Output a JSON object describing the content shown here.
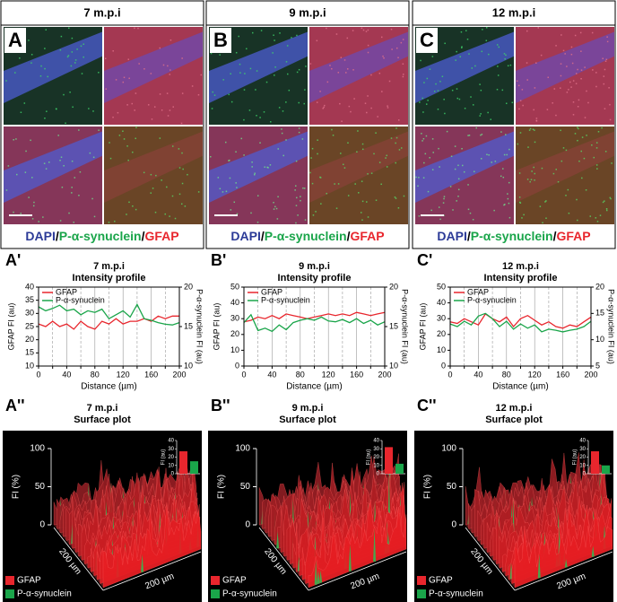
{
  "figure": {
    "columns": [
      {
        "label": "A",
        "header": "7 m.p.i",
        "stain": [
          "DAPI",
          "/",
          "P-α-synuclein",
          "/",
          "GFAP"
        ],
        "stain_colors": [
          "#2b3a97",
          "#000000",
          "#1aa54a",
          "#000000",
          "#e8262d"
        ]
      },
      {
        "label": "B",
        "header": "9 m.p.i",
        "stain": [
          "DAPI",
          "/",
          "P-α-synuclein",
          "/",
          "GFAP"
        ],
        "stain_colors": [
          "#2b3a97",
          "#000000",
          "#1aa54a",
          "#000000",
          "#e8262d"
        ]
      },
      {
        "label": "C",
        "header": "12 m.p.i",
        "stain": [
          "DAPI",
          "/",
          "P-α-synuclein",
          "/",
          "GFAP"
        ],
        "stain_colors": [
          "#2b3a97",
          "#000000",
          "#1aa54a",
          "#000000",
          "#e8262d"
        ]
      }
    ]
  },
  "chart_data": [
    {
      "type": "line",
      "label": "A'",
      "title": "7 m.p.i",
      "subtitle": "Intensity profile",
      "xlabel": "Distance (µm)",
      "ylabel": "GFAP FI (au)",
      "y2label": "P-α-synuclein FI (au)",
      "x": [
        0,
        10,
        20,
        30,
        40,
        50,
        60,
        70,
        80,
        90,
        100,
        110,
        120,
        130,
        140,
        150,
        160,
        170,
        180,
        190,
        200
      ],
      "xlim": [
        0,
        200
      ],
      "xticks": [
        0,
        20,
        40,
        60,
        80,
        100,
        120,
        140,
        160,
        180,
        200
      ],
      "ylim": [
        10,
        40
      ],
      "yticks": [
        10,
        15,
        20,
        25,
        30,
        35,
        40
      ],
      "y2lim": [
        10,
        20
      ],
      "y2ticks": [
        10,
        15,
        20
      ],
      "grid": true,
      "legend": "upper left",
      "series": [
        {
          "name": "GFAP",
          "color": "#e8262d",
          "values": [
            26,
            25,
            27,
            25,
            26,
            24,
            27,
            25,
            24,
            27,
            26,
            28,
            26,
            27,
            27,
            28,
            27,
            29,
            28,
            29,
            29
          ]
        },
        {
          "name": "P-α-synuclein",
          "color": "#1aa54a",
          "axis": "y2",
          "values": [
            17.5,
            17,
            17.3,
            17.7,
            17,
            17.2,
            16.5,
            17,
            16.8,
            17.2,
            16,
            16.5,
            17,
            16.2,
            17.8,
            16,
            15.8,
            15.5,
            15.3,
            15.2,
            15.5
          ]
        }
      ]
    },
    {
      "type": "line",
      "label": "B'",
      "title": "9 m.p.i",
      "subtitle": "Intensity profile",
      "xlabel": "Distance (µm)",
      "ylabel": "GFAP FI (au)",
      "y2label": "P-α-synuclein FI (au)",
      "x": [
        0,
        10,
        20,
        30,
        40,
        50,
        60,
        70,
        80,
        90,
        100,
        110,
        120,
        130,
        140,
        150,
        160,
        170,
        180,
        190,
        200
      ],
      "xlim": [
        0,
        200
      ],
      "xticks": [
        0,
        20,
        40,
        60,
        80,
        100,
        120,
        140,
        160,
        180,
        200
      ],
      "ylim": [
        0,
        50
      ],
      "yticks": [
        0,
        10,
        20,
        30,
        40,
        50
      ],
      "y2lim": [
        10,
        20
      ],
      "y2ticks": [
        10,
        15,
        20
      ],
      "grid": true,
      "legend": "upper left",
      "series": [
        {
          "name": "GFAP",
          "color": "#e8262d",
          "values": [
            28,
            29,
            31,
            30,
            32,
            30,
            33,
            32,
            31,
            30,
            31,
            32,
            33,
            32,
            33,
            32,
            34,
            33,
            32,
            33,
            34
          ]
        },
        {
          "name": "P-α-synuclein",
          "color": "#1aa54a",
          "axis": "y2",
          "values": [
            15.5,
            16.5,
            14.5,
            14.8,
            14.4,
            15.2,
            14.6,
            15.5,
            15.8,
            16,
            15.8,
            16.2,
            15.7,
            15.6,
            15.9,
            15.5,
            16,
            15.4,
            15.8,
            15.2,
            15.6
          ]
        }
      ]
    },
    {
      "type": "line",
      "label": "C'",
      "title": "12 m.p.i",
      "subtitle": "Intensity profile",
      "xlabel": "Distance (µm)",
      "ylabel": "GFAP FI (au)",
      "y2label": "P-α-synuclein FI (au)",
      "x": [
        0,
        10,
        20,
        30,
        40,
        50,
        60,
        70,
        80,
        90,
        100,
        110,
        120,
        130,
        140,
        150,
        160,
        170,
        180,
        190,
        200
      ],
      "xlim": [
        0,
        200
      ],
      "xticks": [
        0,
        20,
        40,
        60,
        80,
        100,
        120,
        140,
        160,
        180,
        200
      ],
      "ylim": [
        0,
        50
      ],
      "yticks": [
        0,
        10,
        20,
        30,
        40,
        50
      ],
      "y2lim": [
        5,
        20
      ],
      "y2ticks": [
        5,
        10,
        15,
        20
      ],
      "grid": true,
      "legend": "upper left",
      "series": [
        {
          "name": "GFAP",
          "color": "#e8262d",
          "values": [
            28,
            27,
            30,
            28,
            26,
            33,
            30,
            28,
            31,
            25,
            30,
            32,
            29,
            26,
            28,
            25,
            24,
            26,
            25,
            28,
            31
          ]
        },
        {
          "name": "P-α-synuclein",
          "color": "#1aa54a",
          "axis": "y2",
          "values": [
            13,
            12.5,
            13.5,
            12.8,
            14.5,
            15,
            14,
            12.5,
            13.5,
            12,
            13,
            12.2,
            12.8,
            11.5,
            12,
            11.8,
            11.5,
            11.8,
            12,
            12.5,
            13.5
          ]
        }
      ]
    },
    {
      "type": "bar",
      "ylabel": "FI (au)",
      "categories": [
        null,
        null
      ],
      "values": [
        27,
        15
      ],
      "colors": [
        "#e8262d",
        "#1aa54a"
      ],
      "ylim": [
        0,
        40
      ],
      "yticks": [
        0,
        10,
        20,
        30,
        40
      ]
    },
    {
      "type": "bar",
      "ylabel": "FI (au)",
      "categories": [
        null,
        null
      ],
      "values": [
        32,
        12
      ],
      "colors": [
        "#e8262d",
        "#1aa54a"
      ],
      "ylim": [
        0,
        40
      ],
      "yticks": [
        0,
        10,
        20,
        30,
        40
      ]
    },
    {
      "type": "bar",
      "ylabel": "FI (au)",
      "categories": [
        null,
        null
      ],
      "values": [
        27,
        10
      ],
      "colors": [
        "#e8262d",
        "#1aa54a"
      ],
      "ylim": [
        0,
        40
      ],
      "yticks": [
        0,
        10,
        20,
        30,
        40
      ]
    }
  ],
  "surface_plots": [
    {
      "label": "A''",
      "title": "7 m.p.i",
      "subtitle": "Surface plot",
      "zlabel": "FI (%)",
      "zlim": [
        0,
        100
      ],
      "zticks": [
        0,
        50,
        100
      ],
      "x_label": "200 µm",
      "y_label": "200 µm",
      "legend": [
        {
          "name": "GFAP",
          "color": "#e8262d"
        },
        {
          "name": "P-α-synuclein",
          "color": "#1aa54a"
        }
      ]
    },
    {
      "label": "B''",
      "title": "9 m.p.i",
      "subtitle": "Surface plot",
      "zlabel": "FI (%)",
      "zlim": [
        0,
        100
      ],
      "zticks": [
        0,
        50,
        100
      ],
      "x_label": "200 µm",
      "y_label": "200 µm",
      "legend": [
        {
          "name": "GFAP",
          "color": "#e8262d"
        },
        {
          "name": "P-α-synuclein",
          "color": "#1aa54a"
        }
      ]
    },
    {
      "label": "C''",
      "title": "12 m.p.i",
      "subtitle": "Surface plot",
      "zlabel": "FI (%)",
      "zlim": [
        0,
        100
      ],
      "zticks": [
        0,
        50,
        100
      ],
      "x_label": "200 µm",
      "y_label": "200 µm",
      "legend": [
        {
          "name": "GFAP",
          "color": "#e8262d"
        },
        {
          "name": "P-α-synuclein",
          "color": "#1aa54a"
        }
      ]
    }
  ]
}
